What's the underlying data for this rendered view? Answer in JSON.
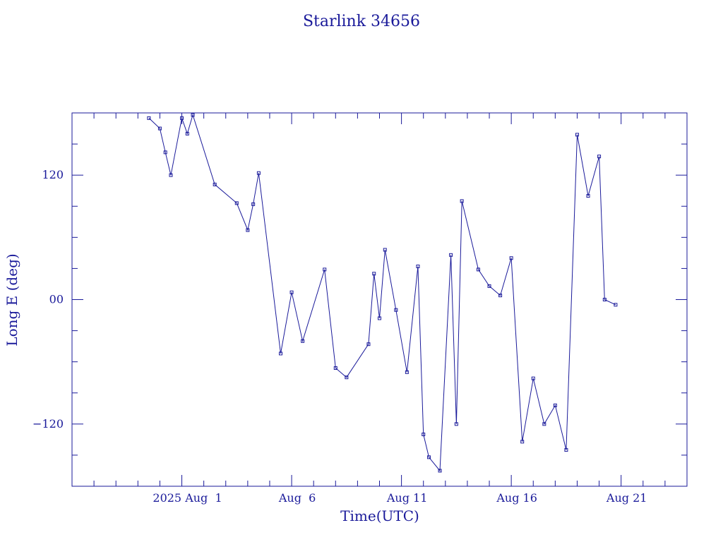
{
  "chart_data": {
    "type": "line",
    "title": "Starlink 34656",
    "xlabel": "Time(UTC)",
    "ylabel": "Long E (deg)",
    "ylim": [
      -180,
      180
    ],
    "xlim": [
      "2025-07-26",
      "2025-08-23"
    ],
    "x_ticks": [
      {
        "value": "2025-07-31",
        "label": "2025 Aug  1"
      },
      {
        "value": "2025-08-05",
        "label": "Aug  6"
      },
      {
        "value": "2025-08-10",
        "label": "Aug 11"
      },
      {
        "value": "2025-08-15",
        "label": "Aug 16"
      },
      {
        "value": "2025-08-20",
        "label": "Aug 21"
      }
    ],
    "y_ticks": [
      {
        "value": 120,
        "label": "120"
      },
      {
        "value": 0,
        "label": "00"
      },
      {
        "value": -120,
        "label": "−120"
      }
    ],
    "grid": false,
    "legend": "none",
    "color": "#1a1a9a",
    "series": [
      {
        "x": [
          "2025-07-29T12:00",
          "2025-07-30T00:00",
          "2025-07-30T06:00",
          "2025-07-30T12:00",
          "2025-07-31T00:00",
          "2025-07-31T06:00",
          "2025-07-31T12:00",
          "2025-08-01T12:00",
          "2025-08-02T12:00",
          "2025-08-03T00:00",
          "2025-08-03T06:00",
          "2025-08-03T12:00",
          "2025-08-04T12:00",
          "2025-08-05T00:00",
          "2025-08-05T12:00",
          "2025-08-06T12:00",
          "2025-08-07T00:00",
          "2025-08-07T12:00",
          "2025-08-08T12:00",
          "2025-08-08T18:00",
          "2025-08-09T00:00",
          "2025-08-09T06:00",
          "2025-08-09T18:00",
          "2025-08-10T06:00",
          "2025-08-10T18:00",
          "2025-08-11T00:00",
          "2025-08-11T06:00",
          "2025-08-11T18:00",
          "2025-08-12T06:00",
          "2025-08-12T12:00",
          "2025-08-12T18:00",
          "2025-08-13T12:00",
          "2025-08-14T00:00",
          "2025-08-14T12:00",
          "2025-08-15T00:00",
          "2025-08-15T12:00",
          "2025-08-16T00:00",
          "2025-08-16T12:00",
          "2025-08-17T00:00",
          "2025-08-17T12:00",
          "2025-08-18T00:00",
          "2025-08-18T12:00",
          "2025-08-19T00:00",
          "2025-08-19T06:00",
          "2025-08-19T18:00"
        ],
        "y": [
          175,
          165,
          142,
          120,
          175,
          160,
          178,
          111,
          93,
          67,
          92,
          122,
          -52,
          7,
          -40,
          29,
          -66,
          -75,
          -43,
          25,
          -18,
          48,
          -10,
          -70,
          32,
          -130,
          -152,
          -165,
          43,
          -120,
          95,
          29,
          13,
          4,
          40,
          -137,
          -76,
          -120,
          -102,
          -145,
          159,
          100,
          138,
          0,
          -5
        ]
      }
    ]
  }
}
